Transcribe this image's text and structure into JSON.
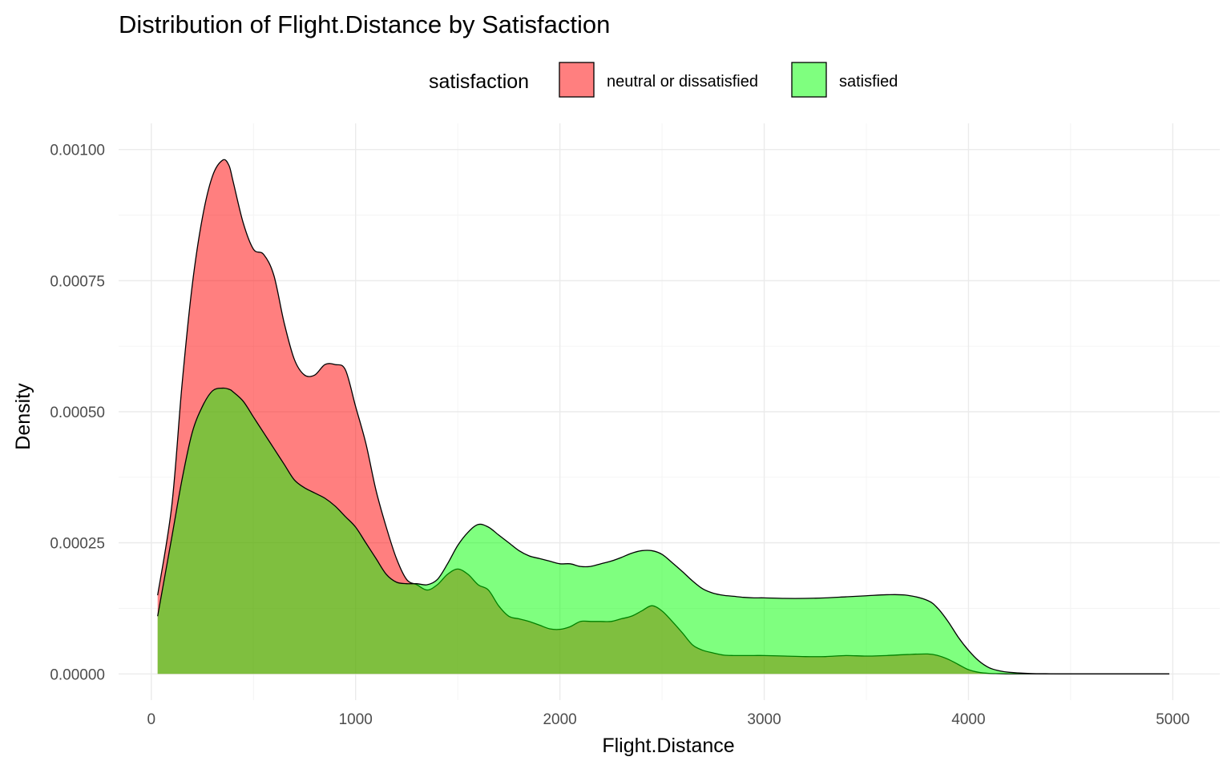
{
  "chart_data": {
    "type": "area",
    "title": "Distribution of Flight.Distance by Satisfaction",
    "xlabel": "Flight.Distance",
    "ylabel": "Density",
    "xlim": [
      -160,
      5230
    ],
    "ylim": [
      -5e-05,
      0.00105
    ],
    "x_ticks": [
      0,
      1000,
      2000,
      3000,
      4000,
      5000
    ],
    "x_tick_labels": [
      "0",
      "1000",
      "2000",
      "3000",
      "4000",
      "5000"
    ],
    "y_ticks": [
      0,
      0.00025,
      0.0005,
      0.00075,
      0.001
    ],
    "y_tick_labels": [
      "0.00000",
      "0.00025",
      "0.00050",
      "0.00075",
      "0.00100"
    ],
    "grid": true,
    "legend": {
      "title": "satisfaction",
      "position": "top",
      "entries": [
        "neutral or dissatisfied",
        "satisfied"
      ]
    },
    "x": [
      31,
      100,
      150,
      200,
      250,
      300,
      350,
      380,
      400,
      450,
      500,
      550,
      600,
      650,
      700,
      750,
      800,
      850,
      900,
      950,
      1000,
      1050,
      1100,
      1150,
      1200,
      1250,
      1300,
      1350,
      1400,
      1450,
      1500,
      1550,
      1600,
      1650,
      1700,
      1750,
      1800,
      1850,
      1900,
      1950,
      2000,
      2050,
      2100,
      2150,
      2200,
      2250,
      2300,
      2350,
      2400,
      2450,
      2500,
      2550,
      2600,
      2650,
      2700,
      2750,
      2800,
      2850,
      2900,
      2950,
      3000,
      3100,
      3200,
      3300,
      3400,
      3500,
      3600,
      3700,
      3800,
      3850,
      3900,
      3950,
      4000,
      4050,
      4100,
      4150,
      4200,
      4300,
      4400,
      4500,
      4600,
      4700,
      4800,
      4983
    ],
    "series": [
      {
        "name": "neutral or dissatisfied",
        "color": "#ff0000",
        "values": [
          0.00015,
          0.00032,
          0.00055,
          0.00074,
          0.00087,
          0.00095,
          0.00098,
          0.00097,
          0.00094,
          0.00086,
          0.00081,
          0.0008,
          0.00076,
          0.00067,
          0.0006,
          0.00057,
          0.00057,
          0.00059,
          0.00059,
          0.00058,
          0.00051,
          0.00044,
          0.00035,
          0.00028,
          0.00022,
          0.00018,
          0.00017,
          0.00016,
          0.00017,
          0.00019,
          0.0002,
          0.00019,
          0.00017,
          0.00016,
          0.00013,
          0.00011,
          0.000105,
          0.0001,
          9.3e-05,
          8.6e-05,
          8.5e-05,
          9e-05,
          0.0001,
          0.0001,
          0.0001,
          0.0001,
          0.000105,
          0.00011,
          0.00012,
          0.00013,
          0.00012,
          0.0001,
          7.8e-05,
          5.5e-05,
          4.5e-05,
          4e-05,
          3.6e-05,
          3.5e-05,
          3.5e-05,
          3.5e-05,
          3.5e-05,
          3.4e-05,
          3.3e-05,
          3.3e-05,
          3.5e-05,
          3.4e-05,
          3.5e-05,
          3.7e-05,
          3.8e-05,
          3.5e-05,
          2.8e-05,
          1.8e-05,
          8e-06,
          3e-06,
          1e-06,
          5e-07,
          0.0,
          0.0,
          0.0,
          0.0,
          0.0,
          0.0,
          0.0,
          0.0
        ]
      },
      {
        "name": "satisfied",
        "color": "#00ff00",
        "values": [
          0.00011,
          0.00026,
          0.00037,
          0.00046,
          0.00051,
          0.00054,
          0.000545,
          0.000543,
          0.000538,
          0.00052,
          0.00049,
          0.00046,
          0.00043,
          0.0004,
          0.00037,
          0.000355,
          0.000345,
          0.000335,
          0.00032,
          0.0003,
          0.00028,
          0.00025,
          0.00022,
          0.00019,
          0.000175,
          0.000172,
          0.000172,
          0.00017,
          0.00018,
          0.00021,
          0.000245,
          0.00027,
          0.000285,
          0.00028,
          0.000265,
          0.00025,
          0.000235,
          0.000225,
          0.00022,
          0.000215,
          0.00021,
          0.00021,
          0.000205,
          0.000205,
          0.00021,
          0.000215,
          0.000222,
          0.00023,
          0.000235,
          0.000235,
          0.000228,
          0.000212,
          0.000195,
          0.000177,
          0.000162,
          0.000154,
          0.00015,
          0.000148,
          0.000146,
          0.000145,
          0.000145,
          0.000144,
          0.000144,
          0.000145,
          0.000147,
          0.000149,
          0.000151,
          0.00015,
          0.00014,
          0.000125,
          0.0001,
          7e-05,
          4.5e-05,
          2.5e-05,
          1.2e-05,
          6e-06,
          3e-06,
          8e-07,
          2e-07,
          0.0,
          0.0,
          0.0,
          0.0,
          0.0
        ]
      }
    ]
  }
}
